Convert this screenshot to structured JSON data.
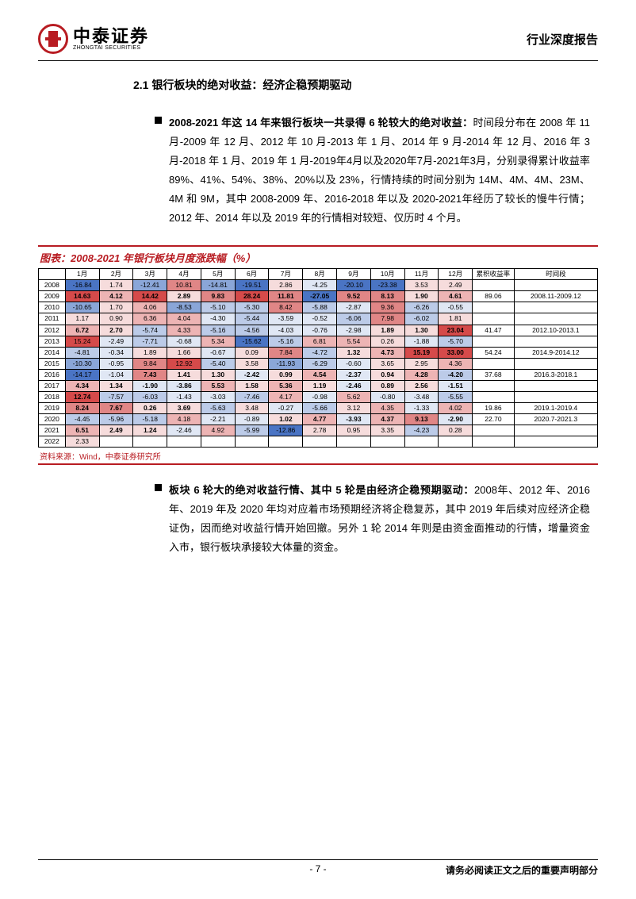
{
  "header": {
    "logo_cn": "中泰证券",
    "logo_en": "ZHONGTAI SECURITIES",
    "doc_type": "行业深度报告"
  },
  "section_heading": "2.1 银行板块的绝对收益：经济企稳预期驱动",
  "para1_bold": "2008-2021 年这 14 年来银行板块一共录得 6 轮较大的绝对收益：",
  "para1_rest": "时间段分布在 2008 年 11 月-2009 年 12 月、2012 年 10 月-2013 年 1 月、2014 年 9 月-2014 年 12 月、2016 年 3 月-2018 年 1 月、2019 年 1 月-2019年4月以及2020年7月-2021年3月，分别录得累计收益率89%、41%、54%、38%、20%以及 23%，行情持续的时间分别为 14M、4M、4M、23M、4M 和 9M，其中 2008-2009 年、2016-2018 年以及 2020-2021年经历了较长的慢牛行情；2012 年、2014 年以及 2019 年的行情相对较短、仅历时 4 个月。",
  "chart": {
    "title": "图表：2008-2021 年银行板块月度涨跌幅（%）",
    "months": [
      "1月",
      "2月",
      "3月",
      "4月",
      "5月",
      "6月",
      "7月",
      "8月",
      "9月",
      "10月",
      "11月",
      "12月"
    ],
    "cum_hdr": "累积收益率",
    "period_hdr": "时间段",
    "rows": [
      {
        "y": "2008",
        "v": [
          "-16.84",
          "1.74",
          "-12.41",
          "10.81",
          "-14.81",
          "-19.51",
          "2.86",
          "-4.25",
          "-20.10",
          "-23.38",
          "3.53",
          "2.49"
        ],
        "cum": "",
        "per": ""
      },
      {
        "y": "2009",
        "v": [
          "14.63",
          "4.12",
          "14.42",
          "2.89",
          "9.83",
          "28.24",
          "11.81",
          "-27.05",
          "9.52",
          "8.13",
          "1.90",
          "4.61"
        ],
        "cum": "89.06",
        "per": "2008.11-2009.12"
      },
      {
        "y": "2010",
        "v": [
          "-10.65",
          "1.70",
          "4.06",
          "-8.53",
          "-5.10",
          "-5.30",
          "8.42",
          "-5.88",
          "-2.87",
          "9.36",
          "-6.26",
          "-0.55"
        ],
        "cum": "",
        "per": ""
      },
      {
        "y": "2011",
        "v": [
          "1.17",
          "0.90",
          "6.36",
          "4.04",
          "-4.30",
          "-5.44",
          "-3.59",
          "-0.52",
          "-6.06",
          "7.98",
          "-6.02",
          "1.81"
        ],
        "cum": "",
        "per": ""
      },
      {
        "y": "2012",
        "v": [
          "6.72",
          "2.70",
          "-5.74",
          "4.33",
          "-5.16",
          "-4.56",
          "-4.03",
          "-0.76",
          "-2.98",
          "1.89",
          "1.30",
          "23.04"
        ],
        "cum": "41.47",
        "per": "2012.10-2013.1"
      },
      {
        "y": "2013",
        "v": [
          "15.24",
          "-2.49",
          "-7.71",
          "-0.68",
          "5.34",
          "-15.62",
          "-5.16",
          "6.81",
          "5.54",
          "0.26",
          "-1.88",
          "-5.70"
        ],
        "cum": "",
        "per": ""
      },
      {
        "y": "2014",
        "v": [
          "-4.81",
          "-0.34",
          "1.89",
          "1.66",
          "-0.67",
          "0.09",
          "7.84",
          "-4.72",
          "1.32",
          "4.73",
          "15.19",
          "33.00"
        ],
        "cum": "54.24",
        "per": "2014.9-2014.12"
      },
      {
        "y": "2015",
        "v": [
          "-10.30",
          "-0.95",
          "9.84",
          "12.92",
          "-5.40",
          "3.58",
          "-11.93",
          "-6.29",
          "-0.60",
          "3.65",
          "2.95",
          "4.36"
        ],
        "cum": "",
        "per": ""
      },
      {
        "y": "2016",
        "v": [
          "-14.17",
          "-1.04",
          "7.43",
          "1.41",
          "1.30",
          "-2.42",
          "0.99",
          "4.54",
          "-2.37",
          "0.94",
          "4.28",
          "-4.20"
        ],
        "cum": "37.68",
        "per": "2016.3-2018.1"
      },
      {
        "y": "2017",
        "v": [
          "4.34",
          "1.34",
          "-1.90",
          "-3.86",
          "5.53",
          "1.58",
          "5.36",
          "1.19",
          "-2.46",
          "0.89",
          "2.56",
          "-1.51"
        ],
        "cum": "",
        "per": ""
      },
      {
        "y": "2018",
        "v": [
          "12.74",
          "-7.57",
          "-6.03",
          "-1.43",
          "-3.03",
          "-7.46",
          "4.17",
          "-0.98",
          "5.62",
          "-0.80",
          "-3.48",
          "-5.55"
        ],
        "cum": "",
        "per": ""
      },
      {
        "y": "2019",
        "v": [
          "8.24",
          "7.67",
          "0.26",
          "3.69",
          "-5.63",
          "3.48",
          "-0.27",
          "-5.66",
          "3.12",
          "4.35",
          "-1.33",
          "4.02"
        ],
        "cum": "19.86",
        "per": "2019.1-2019.4"
      },
      {
        "y": "2020",
        "v": [
          "-4.45",
          "-5.96",
          "-5.18",
          "4.18",
          "-2.21",
          "-0.89",
          "1.02",
          "4.77",
          "-3.93",
          "4.37",
          "9.13",
          "-2.90"
        ],
        "cum": "22.70",
        "per": "2020.7-2021.3"
      },
      {
        "y": "2021",
        "v": [
          "6.51",
          "2.49",
          "1.24",
          "-2.46",
          "4.92",
          "-5.99",
          "-12.86",
          "2.78",
          "0.95",
          "3.35",
          "-4.23",
          "0.28"
        ],
        "cum": "",
        "per": ""
      },
      {
        "y": "2022",
        "v": [
          "2.33",
          "",
          "",
          "",
          "",
          "",
          "",
          "",
          "",
          "",
          "",
          ""
        ],
        "cum": "",
        "per": ""
      }
    ],
    "colors": {
      "r4": "#d54a4a",
      "r3": "#e08686",
      "r2": "#edb4b4",
      "r1": "#f6dcdc",
      "b4": "#4a74c4",
      "b3": "#8aa6d8",
      "b2": "#bccbe8",
      "b1": "#e0e7f4",
      "w": "#ffffff"
    },
    "cell_colors": [
      [
        "b4",
        "r1",
        "b3",
        "r3",
        "b3",
        "b4",
        "r1",
        "b1",
        "b4",
        "b4",
        "r1",
        "r1",
        "w",
        "w"
      ],
      [
        "r4",
        "r2",
        "r4",
        "r1",
        "r3",
        "r4",
        "r3",
        "b4",
        "r3",
        "r3",
        "r1",
        "r2",
        "w",
        "w"
      ],
      [
        "b3",
        "r1",
        "r2",
        "b3",
        "b2",
        "b2",
        "r3",
        "b2",
        "b1",
        "r3",
        "b2",
        "b1",
        "w",
        "w"
      ],
      [
        "r1",
        "r1",
        "r2",
        "r2",
        "b1",
        "b2",
        "b1",
        "b1",
        "b2",
        "r3",
        "b2",
        "r1",
        "w",
        "w"
      ],
      [
        "r2",
        "r1",
        "b2",
        "r2",
        "b2",
        "b2",
        "b1",
        "b1",
        "b1",
        "r1",
        "r1",
        "r4",
        "w",
        "w"
      ],
      [
        "r4",
        "b1",
        "b2",
        "b1",
        "r2",
        "b4",
        "b2",
        "r2",
        "r2",
        "r1",
        "b1",
        "b2",
        "w",
        "w"
      ],
      [
        "b2",
        "b1",
        "r1",
        "r1",
        "b1",
        "r1",
        "r3",
        "b2",
        "r1",
        "r2",
        "r4",
        "r4",
        "w",
        "w"
      ],
      [
        "b3",
        "b1",
        "r3",
        "r4",
        "b2",
        "r1",
        "b3",
        "b2",
        "b1",
        "r1",
        "r1",
        "r2",
        "w",
        "w"
      ],
      [
        "b4",
        "b1",
        "r3",
        "r1",
        "r1",
        "b1",
        "r1",
        "r2",
        "b1",
        "r1",
        "r2",
        "b2",
        "w",
        "w"
      ],
      [
        "r2",
        "r1",
        "b1",
        "b1",
        "r2",
        "r1",
        "r2",
        "r1",
        "b1",
        "r1",
        "r1",
        "b1",
        "w",
        "w"
      ],
      [
        "r4",
        "b2",
        "b2",
        "b1",
        "b1",
        "b2",
        "r2",
        "b1",
        "r2",
        "b1",
        "b1",
        "b2",
        "w",
        "w"
      ],
      [
        "r3",
        "r3",
        "r1",
        "r1",
        "b2",
        "r1",
        "b1",
        "b2",
        "r1",
        "r2",
        "b1",
        "r2",
        "w",
        "w"
      ],
      [
        "b2",
        "b2",
        "b2",
        "r2",
        "b1",
        "b1",
        "r1",
        "r2",
        "b1",
        "r2",
        "r3",
        "b1",
        "w",
        "w"
      ],
      [
        "r2",
        "r1",
        "r1",
        "b1",
        "r2",
        "b2",
        "b4",
        "r1",
        "r1",
        "r1",
        "b2",
        "r1",
        "w",
        "w"
      ],
      [
        "r1",
        "w",
        "w",
        "w",
        "w",
        "w",
        "w",
        "w",
        "w",
        "w",
        "w",
        "w",
        "w",
        "w"
      ]
    ],
    "bold_cols_per_row": [
      [],
      [
        0,
        1,
        2,
        3,
        4,
        5,
        6,
        7,
        8,
        9,
        10,
        11
      ],
      [],
      [],
      [
        0,
        1,
        9,
        10,
        11
      ],
      [],
      [
        8,
        9,
        10,
        11
      ],
      [],
      [
        2,
        3,
        4,
        5,
        6,
        7,
        8,
        9,
        10,
        11
      ],
      [
        0,
        1,
        2,
        3,
        4,
        5,
        6,
        7,
        8,
        9,
        10,
        11
      ],
      [
        0
      ],
      [
        0,
        1,
        2,
        3
      ],
      [
        6,
        7,
        8,
        9,
        10,
        11
      ],
      [
        0,
        1,
        2
      ],
      []
    ],
    "source": "资料来源：Wind，中泰证券研究所"
  },
  "para2_bold": "板块 6 轮大的绝对收益行情、其中 5 轮是由经济企稳预期驱动：",
  "para2_rest": "2008年、2012 年、2016 年、2019 年及 2020 年均对应着市场预期经济将企稳复苏，其中 2019 年后续对应经济企稳证伪，因而绝对收益行情开始回撤。另外 1 轮 2014 年则是由资金面推动的行情，增量资金入市，银行板块承接较大体量的资金。",
  "footer": {
    "page": "- 7 -",
    "note": "请务必阅读正文之后的重要声明部分"
  }
}
